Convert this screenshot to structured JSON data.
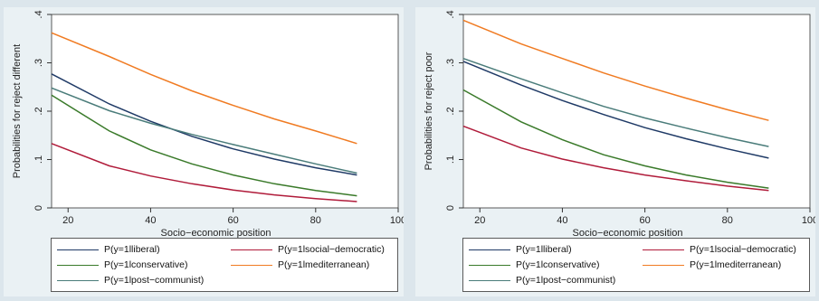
{
  "chart_data": [
    {
      "type": "line",
      "title": "",
      "xlabel": "Socio−economic position",
      "ylabel": "Probabilities for reject different",
      "xlim": [
        16,
        100
      ],
      "ylim": [
        0,
        0.4
      ],
      "xticks": [
        20,
        40,
        60,
        80,
        100
      ],
      "xtick_labels": [
        "20",
        "40",
        "60",
        "80",
        "100"
      ],
      "yticks": [
        0,
        0.1,
        0.2,
        0.3,
        0.4
      ],
      "ytick_labels": [
        "0",
        ".1",
        ".2",
        ".3",
        ".4"
      ],
      "grid": false,
      "legend_placement": "bottom",
      "x": [
        16,
        30,
        40,
        50,
        60,
        70,
        80,
        90
      ],
      "series": [
        {
          "name": "P(y=1lliberal)",
          "color": "#1f3a66",
          "values": [
            0.277,
            0.215,
            0.179,
            0.148,
            0.122,
            0.101,
            0.083,
            0.068
          ]
        },
        {
          "name": "P(y=1lsocial−democratic)",
          "color": "#b01b3a",
          "values": [
            0.133,
            0.087,
            0.066,
            0.05,
            0.037,
            0.027,
            0.019,
            0.013
          ]
        },
        {
          "name": "P(y=1lconservative)",
          "color": "#3a7a2a",
          "values": [
            0.233,
            0.159,
            0.12,
            0.091,
            0.068,
            0.05,
            0.036,
            0.025
          ]
        },
        {
          "name": "P(y=1lmediterranean)",
          "color": "#f07b22",
          "values": [
            0.362,
            0.313,
            0.276,
            0.242,
            0.212,
            0.184,
            0.159,
            0.133
          ]
        },
        {
          "name": "P(y=1lpost−communist)",
          "color": "#4a7c7a",
          "values": [
            0.248,
            0.201,
            0.175,
            0.152,
            0.131,
            0.111,
            0.091,
            0.072
          ]
        }
      ]
    },
    {
      "type": "line",
      "title": "",
      "xlabel": "Socio−economic position",
      "ylabel": "Probabilities for reject poor",
      "xlim": [
        16,
        100
      ],
      "ylim": [
        0,
        0.4
      ],
      "xticks": [
        20,
        40,
        60,
        80,
        100
      ],
      "xtick_labels": [
        "20",
        "40",
        "60",
        "80",
        "100"
      ],
      "yticks": [
        0,
        0.1,
        0.2,
        0.3,
        0.4
      ],
      "ytick_labels": [
        "0",
        ".1",
        ".2",
        ".3",
        ".4"
      ],
      "grid": false,
      "legend_placement": "bottom",
      "x": [
        16,
        30,
        40,
        50,
        60,
        70,
        80,
        90
      ],
      "series": [
        {
          "name": "P(y=1lliberal)",
          "color": "#1f3a66",
          "values": [
            0.303,
            0.254,
            0.222,
            0.193,
            0.166,
            0.143,
            0.122,
            0.103
          ]
        },
        {
          "name": "P(y=1lsocial−democratic)",
          "color": "#b01b3a",
          "values": [
            0.169,
            0.124,
            0.101,
            0.083,
            0.068,
            0.056,
            0.045,
            0.036
          ]
        },
        {
          "name": "P(y=1lconservative)",
          "color": "#3a7a2a",
          "values": [
            0.244,
            0.178,
            0.141,
            0.11,
            0.087,
            0.068,
            0.053,
            0.041
          ]
        },
        {
          "name": "P(y=1lmediterranean)",
          "color": "#f07b22",
          "values": [
            0.388,
            0.339,
            0.309,
            0.279,
            0.252,
            0.227,
            0.203,
            0.181
          ]
        },
        {
          "name": "P(y=1lpost−communist)",
          "color": "#4a7c7a",
          "values": [
            0.309,
            0.267,
            0.238,
            0.21,
            0.186,
            0.165,
            0.145,
            0.127
          ]
        }
      ]
    }
  ]
}
